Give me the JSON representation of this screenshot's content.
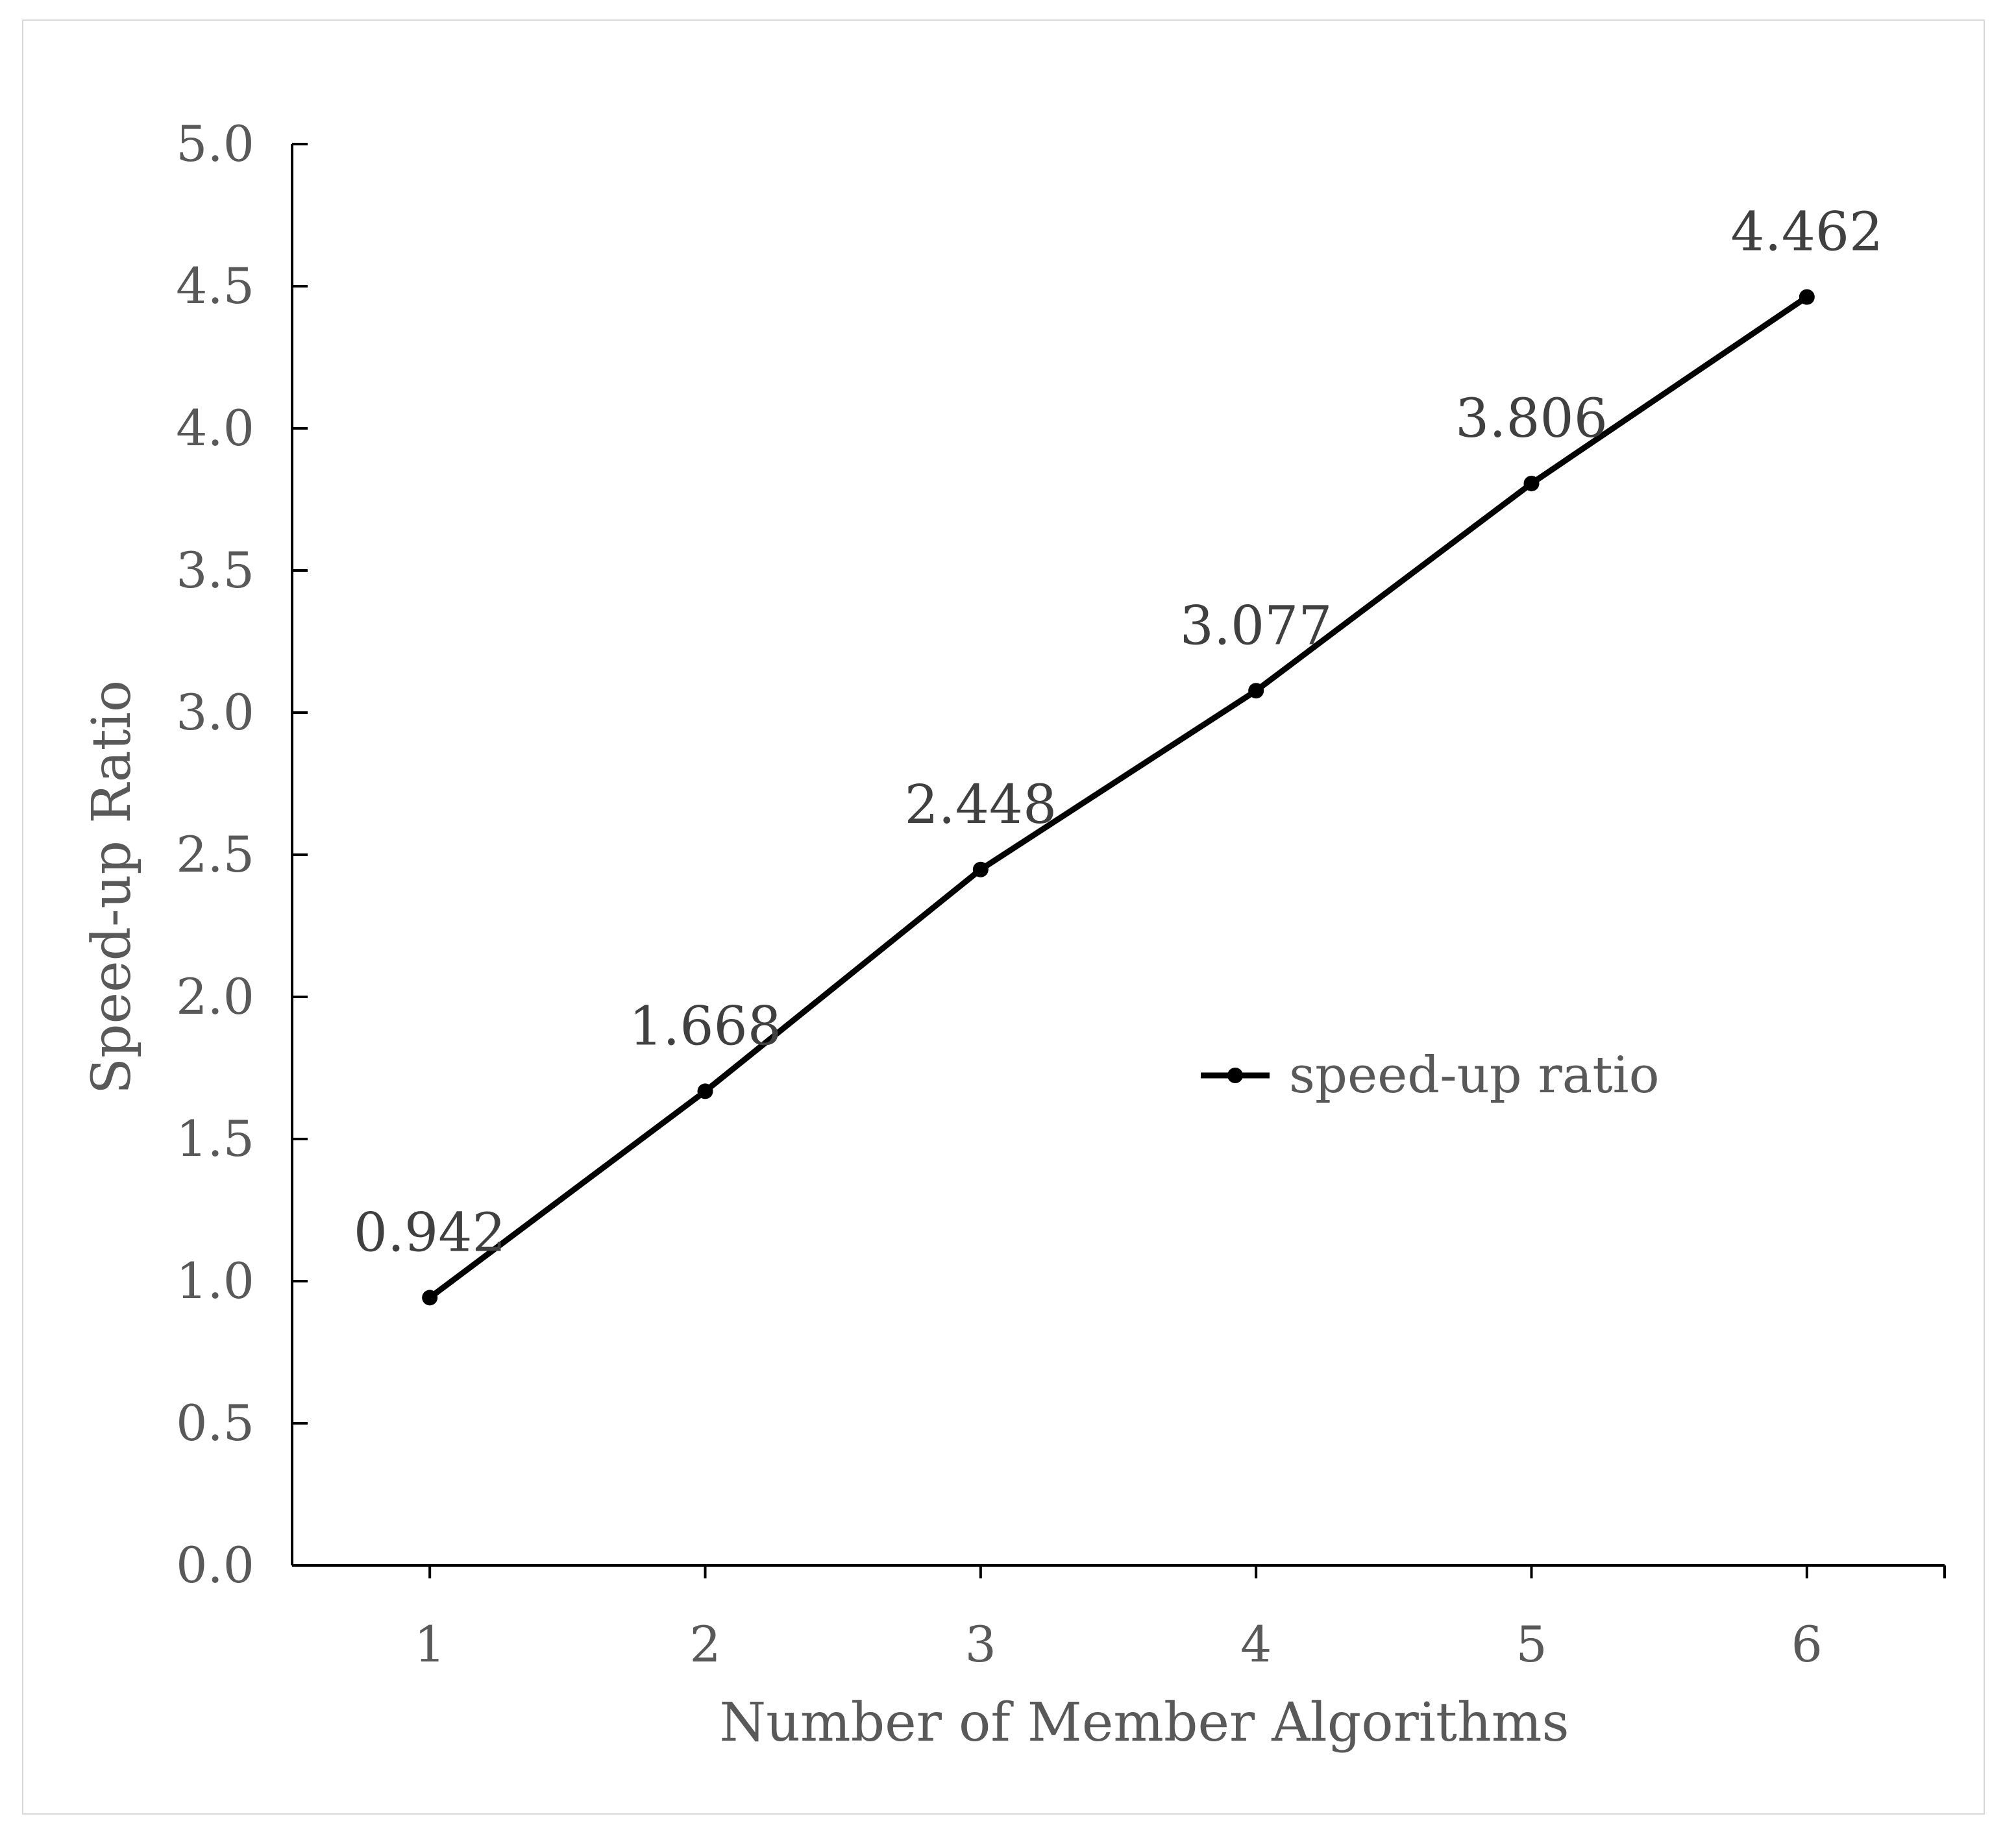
{
  "chart_data": {
    "type": "line",
    "title": "",
    "xlabel": "Number of Member Algorithms",
    "ylabel": "Speed-up Ratio",
    "categories": [
      "1",
      "2",
      "3",
      "4",
      "5",
      "6"
    ],
    "series": [
      {
        "name": "speed-up ratio",
        "values": [
          0.942,
          1.668,
          2.448,
          3.077,
          3.806,
          4.462
        ],
        "labels": [
          "0.942",
          "1.668",
          "2.448",
          "3.077",
          "3.806",
          "4.462"
        ],
        "color": "#000000",
        "marker": "circle"
      }
    ],
    "ylim": [
      0,
      5.0
    ],
    "yticks": [
      "0.0",
      "0.5",
      "1.0",
      "1.5",
      "2.0",
      "2.5",
      "3.0",
      "3.5",
      "4.0",
      "4.5",
      "5.0"
    ],
    "grid": false,
    "legend": "center-right"
  }
}
